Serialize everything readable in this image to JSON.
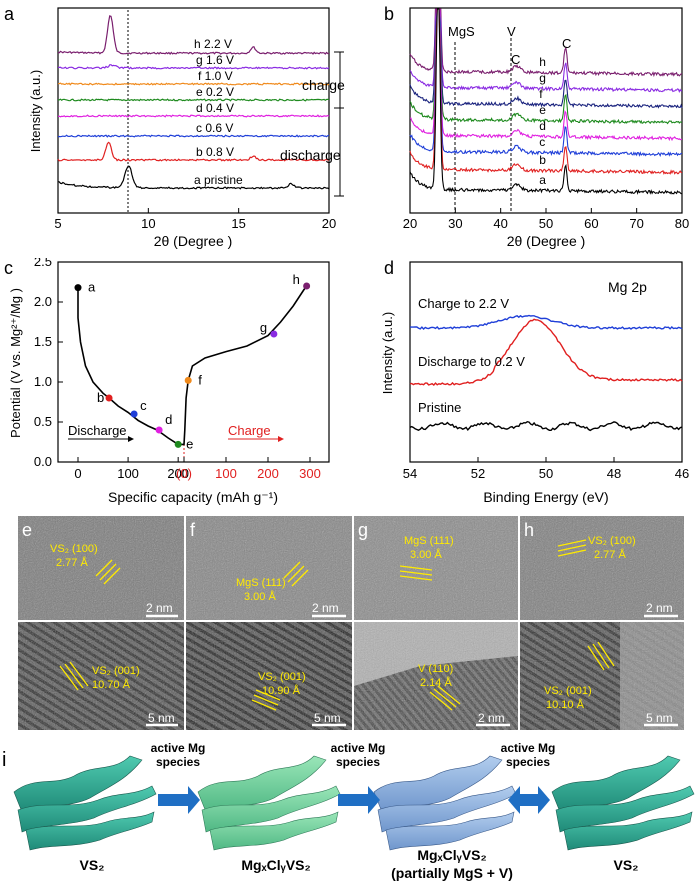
{
  "panel_a": {
    "letter": "a",
    "xlabel": "2θ (Degree )",
    "ylabel": "Intensity  (a.u.)",
    "xticks": [
      "5",
      "10",
      "15",
      "20"
    ],
    "charge_label": "charge",
    "discharge_label": "discharge",
    "traces": [
      {
        "id": "h",
        "label": "h 2.2 V",
        "color": "#7a1f6e"
      },
      {
        "id": "g",
        "label": "g 1.6 V",
        "color": "#8a2be2"
      },
      {
        "id": "f",
        "label": "f 1.0 V",
        "color": "#f08a1c"
      },
      {
        "id": "e",
        "label": "e 0.2 V",
        "color": "#1e8a1e"
      },
      {
        "id": "d",
        "label": "d 0.4 V",
        "color": "#e020e0"
      },
      {
        "id": "c",
        "label": "c 0.6 V",
        "color": "#1f3fd8"
      },
      {
        "id": "b",
        "label": "b 0.8 V",
        "color": "#e02020"
      },
      {
        "id": "a",
        "label": "a pristine",
        "color": "#000000"
      }
    ]
  },
  "panel_b": {
    "letter": "b",
    "xlabel": "2θ (Degree )",
    "xticks": [
      "20",
      "30",
      "40",
      "50",
      "60",
      "70",
      "80"
    ],
    "ref_labels": [
      "MgS",
      "V",
      "C",
      "C"
    ],
    "trace_letters": [
      "h",
      "g",
      "f",
      "e",
      "d",
      "c",
      "b",
      "a"
    ],
    "colors": [
      "#7a1f6e",
      "#8a2be2",
      "#1a237e",
      "#1e8a1e",
      "#e020e0",
      "#1f3fd8",
      "#e02020",
      "#000000"
    ]
  },
  "panel_c": {
    "letter": "c",
    "ylabel": "Potential (V vs. Mg²⁺/Mg )",
    "xlabel": "Specific capacity  (mAh g⁻¹)",
    "yticks": [
      "0.0",
      "0.5",
      "1.0",
      "1.5",
      "2.0",
      "2.5"
    ],
    "xticks_discharge": [
      "0",
      "100",
      "200"
    ],
    "xtick_zero": "(0)",
    "xticks_charge": [
      "100",
      "200",
      "300"
    ],
    "discharge_label": "Discharge",
    "charge_label": "Charge",
    "points": [
      {
        "label": "a",
        "color": "#000000"
      },
      {
        "label": "b",
        "color": "#e02020"
      },
      {
        "label": "c",
        "color": "#1f3fd8"
      },
      {
        "label": "d",
        "color": "#e020e0"
      },
      {
        "label": "e",
        "color": "#1e8a1e"
      },
      {
        "label": "f",
        "color": "#f08a1c"
      },
      {
        "label": "g",
        "color": "#8a2be2"
      },
      {
        "label": "h",
        "color": "#7a1f6e"
      }
    ]
  },
  "panel_d": {
    "letter": "d",
    "title": "Mg 2p",
    "xlabel": "Binding Energy (eV)",
    "ylabel": "Intensity  (a.u.)",
    "xticks": [
      "54",
      "52",
      "50",
      "48",
      "46"
    ],
    "curves": [
      {
        "label": "Charge to 2.2 V",
        "color": "#1f3fd8"
      },
      {
        "label": "Discharge to 0.2 V",
        "color": "#e02020"
      },
      {
        "label": "Pristine",
        "color": "#000000"
      }
    ]
  },
  "tem": {
    "e": {
      "letter": "e",
      "top_label_1": "VS₂ (100)",
      "top_label_2": "2.77 Å",
      "top_scale": "2 nm",
      "bot_label_1": "VS₂ (001)",
      "bot_label_2": "10.70 Å",
      "bot_scale": "5 nm"
    },
    "f": {
      "letter": "f",
      "top_label_1": "MgS (111)",
      "top_label_2": "3.00 Å",
      "top_scale": "2 nm",
      "bot_label_1": "VS₂ (001)",
      "bot_label_2": "10.90 Å",
      "bot_scale": "5 nm"
    },
    "g": {
      "letter": "g",
      "top_label_1": "MgS (111)",
      "top_label_2": "3.00 Å",
      "top_scale": "",
      "bot_label_1": "V (110)",
      "bot_label_2": "2.14 Å",
      "bot_scale": "2 nm"
    },
    "h": {
      "letter": "h",
      "top_label_1": "VS₂ (100)",
      "top_label_2": "2.77 Å",
      "top_scale": "2 nm",
      "bot_label_1": "VS₂ (001)",
      "bot_label_2": "10.10 Å",
      "bot_scale": "5 nm"
    }
  },
  "panel_i": {
    "letter": "i",
    "arrow_label_1": "active Mg",
    "arrow_label_2": "species",
    "stage_1": "VS₂",
    "stage_2": "MgₓClᵧVS₂",
    "stage_3_line1": "MgₓClᵧVS₂",
    "stage_3_line2": "(partially MgS + V)",
    "stage_4": "VS₂",
    "colors": {
      "teal": "#3fb8a0",
      "green": "#7fd6a4",
      "blue": "#8fb4e0",
      "arrow": "#1f6fc4"
    }
  }
}
